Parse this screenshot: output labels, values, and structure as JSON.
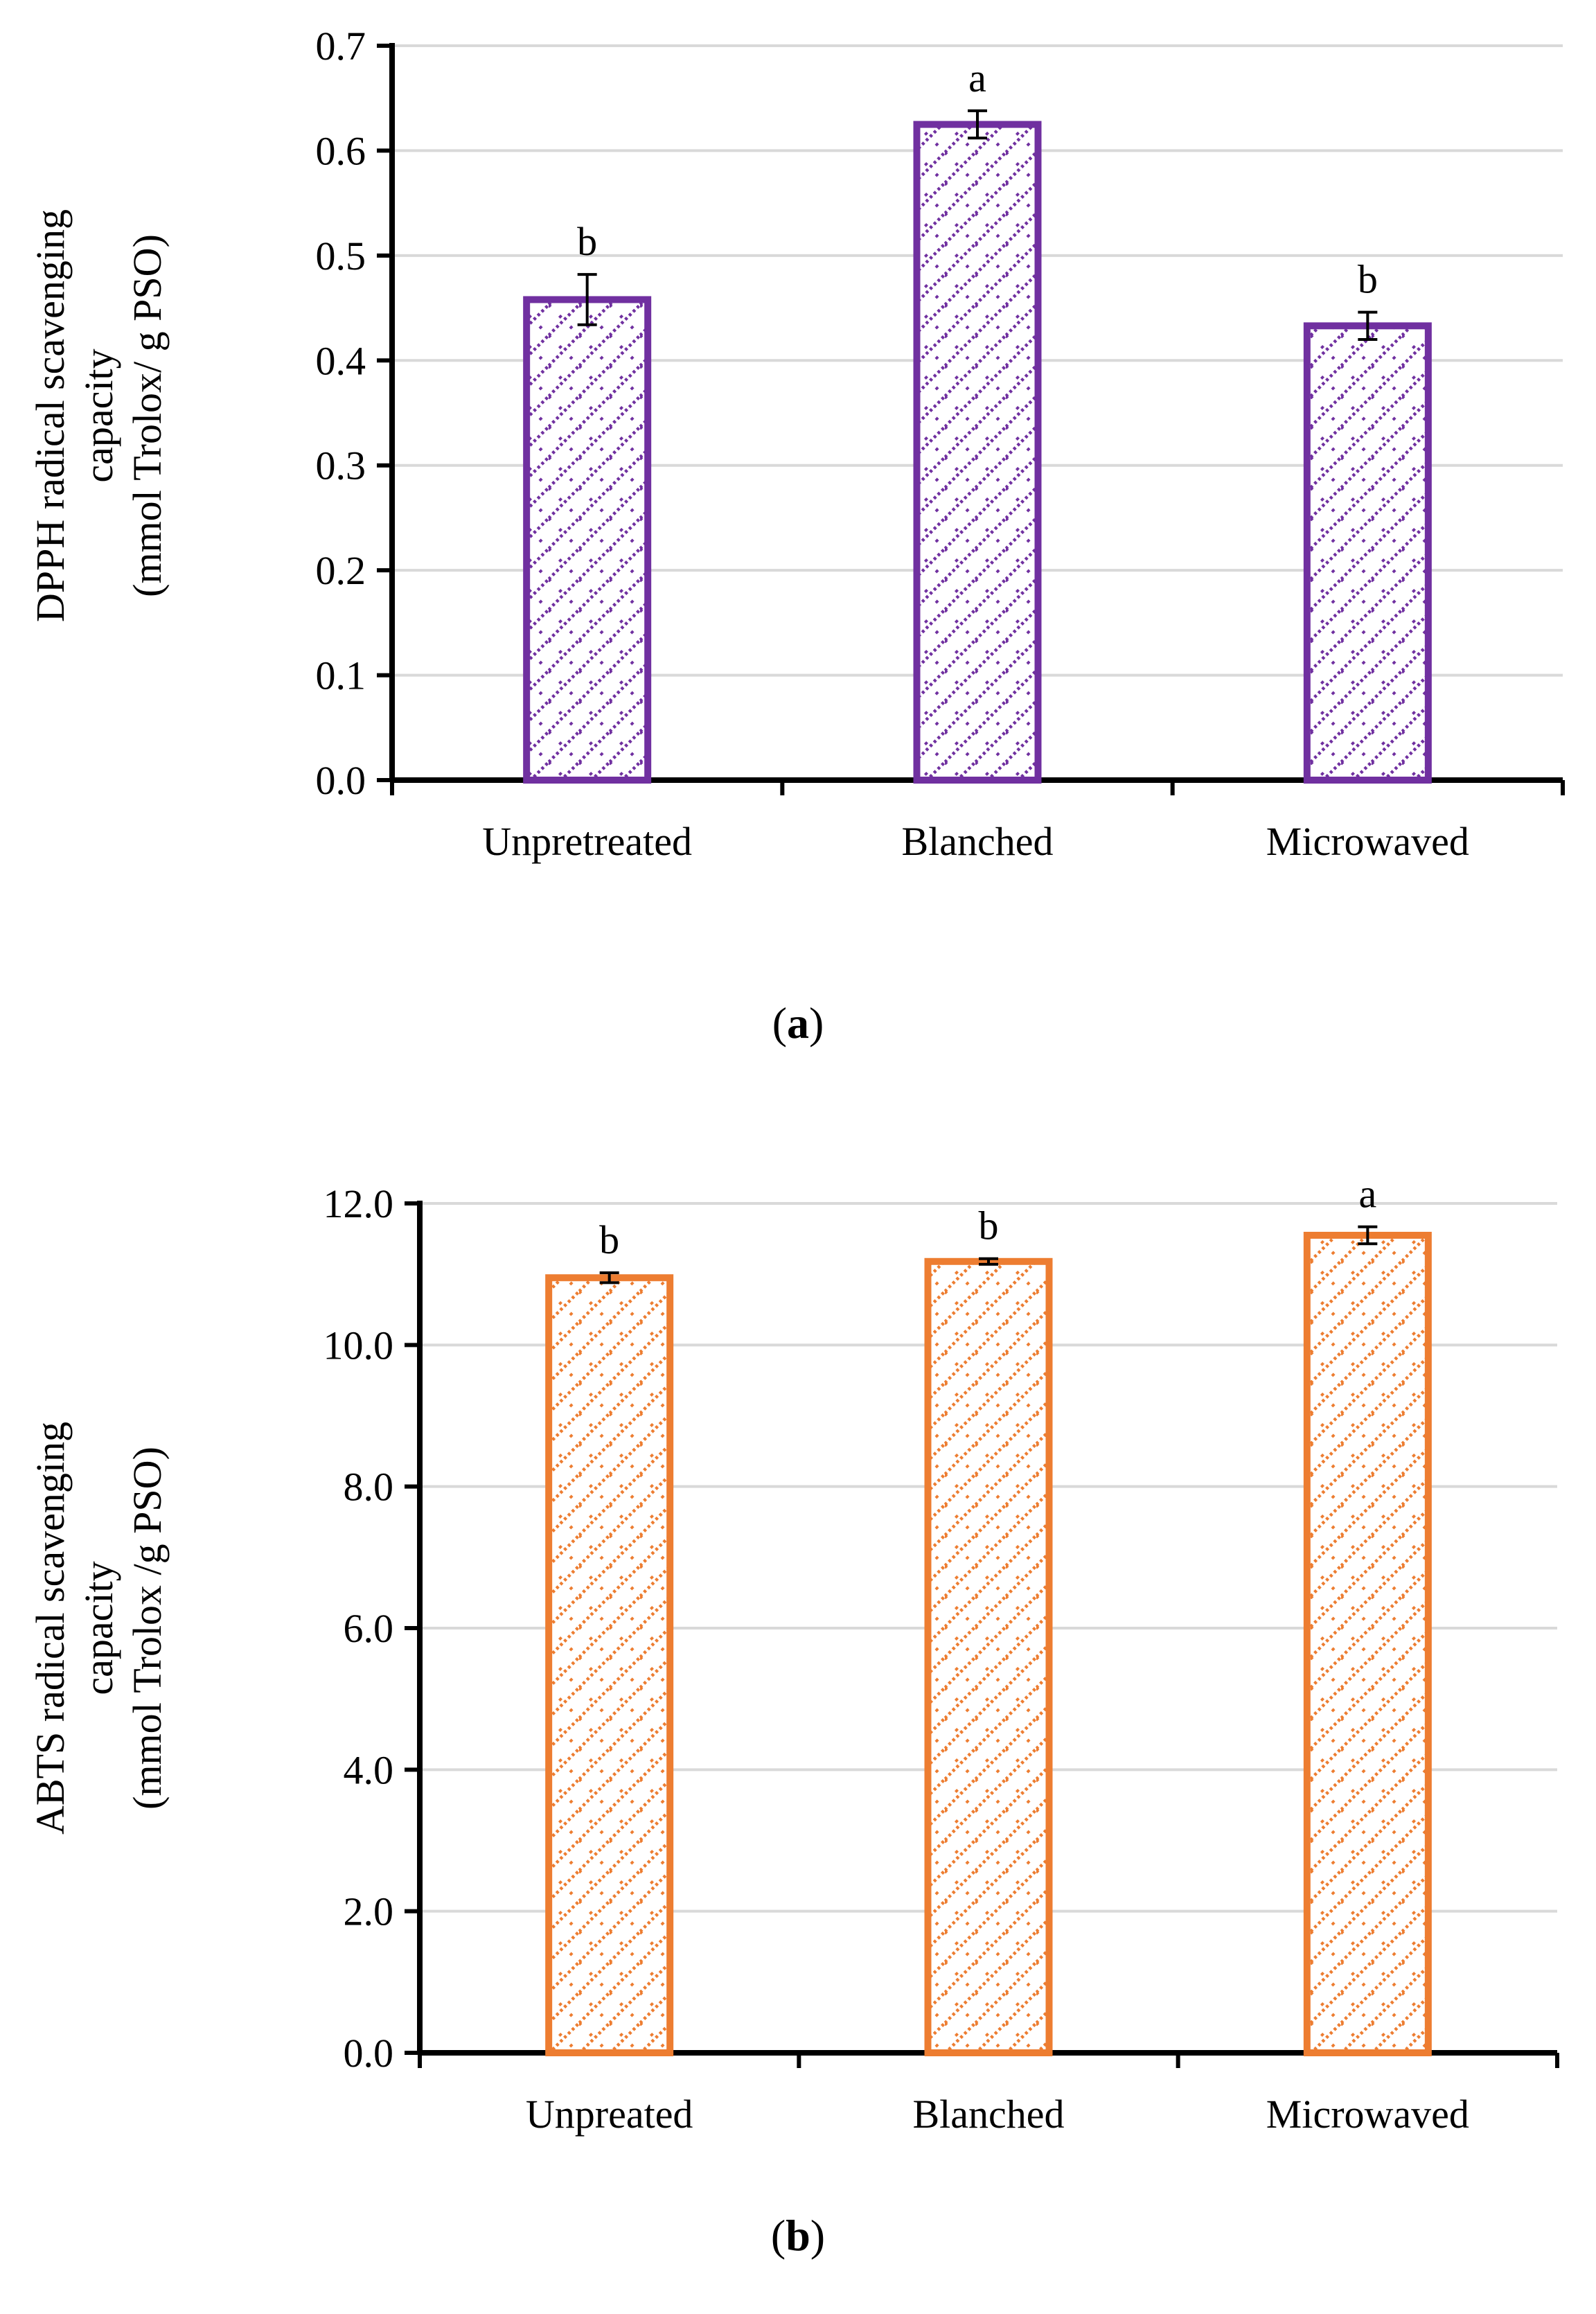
{
  "chart_data": [
    {
      "type": "bar",
      "panel_label": "a",
      "categories": [
        "Unpretreated",
        "Blanched",
        "Microwaved"
      ],
      "values": [
        0.458,
        0.625,
        0.433
      ],
      "errors": [
        0.024,
        0.013,
        0.013
      ],
      "significance": [
        "b",
        "a",
        "b"
      ],
      "ylabel_lines": [
        "DPPH radical scavenging",
        "capacity",
        "(mmol Trolox/ g PSO)"
      ],
      "ylim": [
        0,
        0.7
      ],
      "yticks": [
        "0.0",
        "0.1",
        "0.2",
        "0.3",
        "0.4",
        "0.5",
        "0.6",
        "0.7"
      ],
      "grid": true,
      "bar_color": "#7030a0"
    },
    {
      "type": "bar",
      "panel_label": "b",
      "categories": [
        "Unpreated",
        "Blanched",
        "Microwaved"
      ],
      "values": [
        10.95,
        11.18,
        11.55
      ],
      "errors": [
        0.07,
        0.04,
        0.12
      ],
      "significance": [
        "b",
        "b",
        "a"
      ],
      "ylabel_lines": [
        "ABTS radical scavenging",
        "capacity",
        "(mmol Trolox /g PSO)"
      ],
      "ylim": [
        0,
        12
      ],
      "yticks": [
        "0.0",
        "2.0",
        "4.0",
        "6.0",
        "8.0",
        "10.0",
        "12.0"
      ],
      "grid": true,
      "bar_color": "#ed7d31"
    }
  ]
}
